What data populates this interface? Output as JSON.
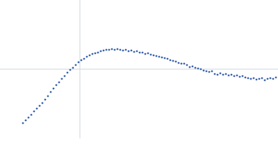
{
  "chart_data": {
    "type": "scatter",
    "xlim": [
      0,
      400
    ],
    "ylim": [
      0,
      200
    ],
    "xlines": [
      115
    ],
    "ylines": [
      100
    ],
    "line_color": "#cdd5df",
    "series": [
      {
        "color": "#3a64ad",
        "x": [
          33,
          37,
          41,
          45,
          49,
          53,
          57,
          61,
          65,
          69,
          73,
          77,
          81,
          85,
          89,
          93,
          97,
          101,
          105,
          109,
          113,
          117,
          121,
          125,
          129,
          133,
          137,
          141,
          145,
          149,
          153,
          157,
          161,
          165,
          169,
          173,
          177,
          181,
          185,
          189,
          193,
          197,
          201,
          205,
          209,
          213,
          217,
          221,
          225,
          229,
          233,
          237,
          241,
          245,
          249,
          253,
          257,
          261,
          265,
          269,
          273,
          277,
          281,
          285,
          289,
          293,
          297,
          301,
          305,
          309,
          313,
          317,
          321,
          325,
          329,
          333,
          337,
          341,
          345,
          349,
          353,
          357,
          361,
          365,
          369,
          373,
          377,
          381,
          385,
          389,
          393,
          397
        ],
        "values": [
          22,
          26,
          30,
          34,
          39,
          43,
          47,
          51,
          56,
          61,
          67,
          72,
          77,
          81,
          86,
          90,
          95,
          99,
          102,
          106,
          110,
          113,
          115,
          118,
          120,
          122,
          123,
          124,
          126,
          127,
          128,
          128,
          129,
          128,
          129,
          128,
          127,
          128,
          126,
          127,
          125,
          126,
          124,
          124,
          122,
          123,
          121,
          120,
          119,
          118,
          117,
          116,
          115,
          113,
          112,
          111,
          109,
          108,
          108,
          106,
          103,
          104,
          102,
          101,
          100,
          98,
          97,
          96,
          97,
          93,
          92,
          94,
          92,
          93,
          91,
          92,
          90,
          91,
          89,
          90,
          88,
          87,
          86,
          87,
          85,
          86,
          87,
          84,
          86,
          87,
          86,
          88
        ]
      }
    ]
  }
}
